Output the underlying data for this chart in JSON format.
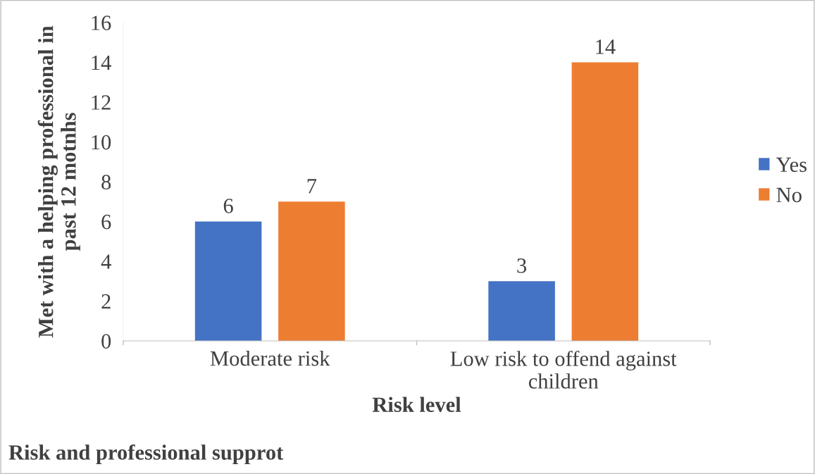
{
  "chart_data": {
    "type": "bar",
    "title": "Risk and professional supprot",
    "xlabel": "Risk level",
    "ylabel": "Met with a helping professional in\npast 12 motnhs",
    "categories": [
      "Moderate risk",
      "Low risk to offend against\nchildren"
    ],
    "series": [
      {
        "name": "Yes",
        "color": "#4472c4",
        "values": [
          6,
          3
        ]
      },
      {
        "name": "No",
        "color": "#ed7d31",
        "values": [
          7,
          14
        ]
      }
    ],
    "ylim": [
      0,
      16
    ],
    "yticks": [
      0,
      2,
      4,
      6,
      8,
      10,
      12,
      14,
      16
    ],
    "data_labels": true,
    "grid": false,
    "legend": "right"
  }
}
